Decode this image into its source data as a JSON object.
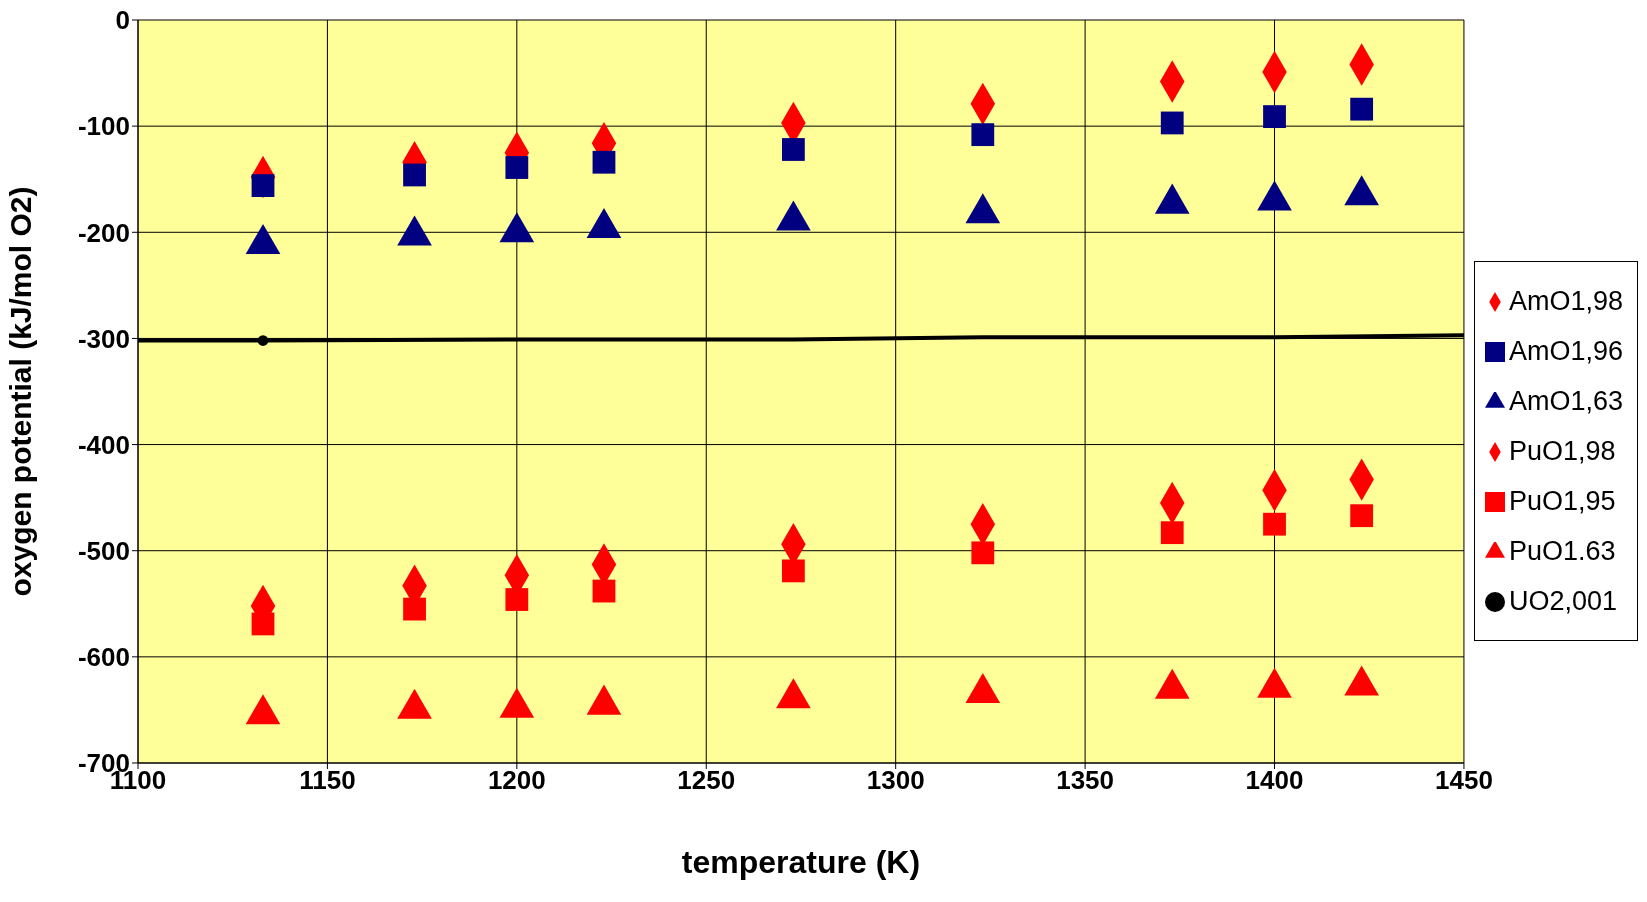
{
  "chart_data": {
    "type": "scatter",
    "xlabel": "temperature (K)",
    "ylabel": "oxygen potential (kJ/mol O2)",
    "x": [
      1133,
      1173,
      1200,
      1223,
      1273,
      1323,
      1373,
      1400,
      1423
    ],
    "xlim": [
      1100,
      1450
    ],
    "xticks": [
      1100,
      1150,
      1200,
      1250,
      1300,
      1350,
      1400,
      1450
    ],
    "ylim": [
      -700,
      0
    ],
    "yticks": [
      -700,
      -600,
      -500,
      -400,
      -300,
      -200,
      -100,
      0
    ],
    "grid": true,
    "legend": "right",
    "series": [
      {
        "type": "line",
        "color": "#000000",
        "marker": "none",
        "x": [
          1100,
          1133,
          1200,
          1273,
          1323,
          1400,
          1450
        ],
        "values": [
          -302,
          -302,
          -301,
          -301,
          -299,
          -299,
          -297
        ]
      },
      {
        "name": "AmO1,98",
        "color": "#ff0000",
        "marker": "diamond",
        "values": [
          -148,
          -134,
          -125,
          -116,
          -97,
          -79,
          -58,
          -49,
          -42
        ]
      },
      {
        "name": "AmO1,96",
        "color": "#000080",
        "marker": "square",
        "values": [
          -156,
          -146,
          -139,
          -134,
          -122,
          -108,
          -97,
          -91,
          -84
        ]
      },
      {
        "name": "AmO1,63",
        "color": "#000080",
        "marker": "triangle",
        "values": [
          -211,
          -203,
          -200,
          -196,
          -189,
          -182,
          -173,
          -170,
          -165
        ]
      },
      {
        "name": "PuO1,98",
        "color": "#ff0000",
        "marker": "diamond",
        "values": [
          -552,
          -533,
          -523,
          -513,
          -494,
          -475,
          -455,
          -443,
          -433
        ]
      },
      {
        "name": "PuO1,95",
        "color": "#ff0000",
        "marker": "square",
        "values": [
          -569,
          -555,
          -546,
          -538,
          -519,
          -502,
          -483,
          -475,
          -467
        ]
      },
      {
        "name": "PuO1.63",
        "color": "#ff0000",
        "marker": "triangle",
        "values": [
          -654,
          -649,
          -648,
          -645,
          -639,
          -634,
          -630,
          -629,
          -627
        ]
      },
      {
        "name": "UO2,001",
        "color": "#000000",
        "marker": "circle",
        "x": [
          1133
        ],
        "values": [
          -302
        ]
      }
    ]
  }
}
